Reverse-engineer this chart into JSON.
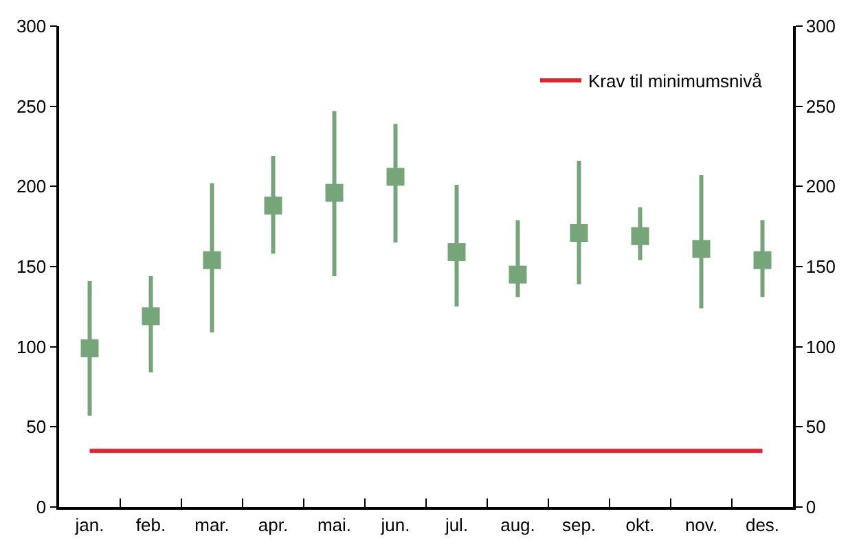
{
  "chart_data": {
    "type": "scatter",
    "categories": [
      "jan.",
      "feb.",
      "mar.",
      "apr.",
      "mai.",
      "jun.",
      "jul.",
      "aug.",
      "sep.",
      "okt.",
      "nov.",
      "des."
    ],
    "series": [
      {
        "color": "#76a57a",
        "marker": "square",
        "values": [
          99,
          119,
          154,
          188,
          196,
          206,
          159,
          145,
          171,
          169,
          161,
          154
        ],
        "errors": [
          [
            57,
            141
          ],
          [
            84,
            144
          ],
          [
            109,
            202
          ],
          [
            158,
            219
          ],
          [
            144,
            247
          ],
          [
            165,
            239
          ],
          [
            125,
            201
          ],
          [
            131,
            179
          ],
          [
            139,
            216
          ],
          [
            154,
            187
          ],
          [
            124,
            207
          ],
          [
            131,
            179
          ]
        ]
      },
      {
        "type": "line",
        "name": "Krav til minimumsnivå",
        "color": "#e3212f",
        "marker": "none",
        "values": [
          35,
          35,
          35,
          35,
          35,
          35,
          35,
          35,
          35,
          35,
          35,
          35
        ]
      }
    ],
    "ylim": [
      0,
      300
    ],
    "yticks": [
      0,
      50,
      100,
      150,
      200,
      250,
      300
    ],
    "y2lim": [
      0,
      300
    ],
    "y2ticks": [
      0,
      50,
      100,
      150,
      200,
      250,
      300
    ],
    "legend": "top right"
  }
}
